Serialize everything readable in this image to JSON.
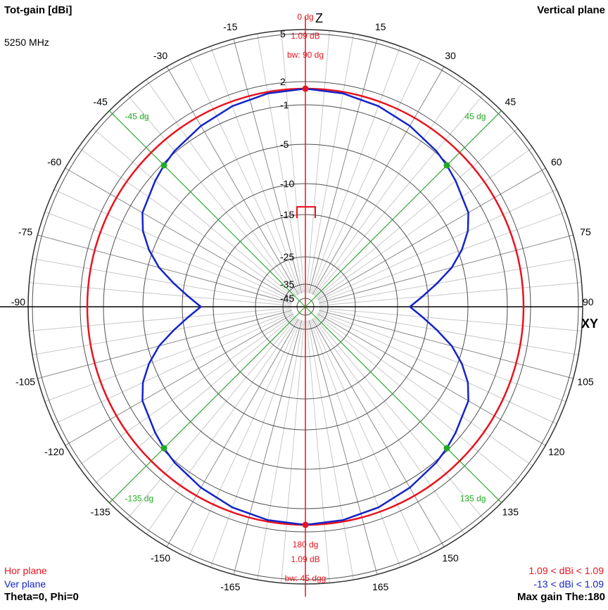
{
  "header": {
    "title": "Tot-gain [dBi]",
    "frequency": "5250 MHz",
    "plane": "Vertical plane",
    "axis_top": "Z",
    "axis_right": "XY",
    "legend_hor": "Hor plane",
    "legend_ver": "Ver plane",
    "angles": "Theta=0, Phi=0",
    "range_hor": "1.09 < dBi < 1.09",
    "range_ver": "-13 < dBi < 1.09",
    "max_gain": "Max gain The:180"
  },
  "colors": {
    "hor": "#e8141e",
    "ver": "#1424c8",
    "marker": "#22aa22",
    "grid_light": "#c8c8c8",
    "grid_dark": "#505050"
  },
  "chart_data": {
    "type": "polar",
    "angle_unit": "degrees",
    "angle_ticks": [
      -165,
      -150,
      -135,
      -120,
      -105,
      -90,
      -75,
      -60,
      -45,
      -30,
      -15,
      15,
      30,
      45,
      60,
      75,
      90,
      105,
      120,
      135,
      150,
      165
    ],
    "radial_ticks": [
      5,
      2,
      -1,
      -5,
      -10,
      -15,
      -25,
      -35,
      -45
    ],
    "radial_unit": "dBi",
    "series": [
      {
        "name": "Hor plane",
        "color": "#e8141e",
        "gain_dbi": 1.09,
        "points": [
          [
            0,
            1.09
          ],
          [
            30,
            1.09
          ],
          [
            60,
            1.09
          ],
          [
            90,
            1.09
          ],
          [
            120,
            1.09
          ],
          [
            150,
            1.09
          ],
          [
            180,
            1.09
          ]
        ]
      },
      {
        "name": "Ver plane",
        "color": "#1424c8",
        "points": [
          [
            0,
            1.09
          ],
          [
            10,
            0.9
          ],
          [
            20,
            0.5
          ],
          [
            30,
            -0.1
          ],
          [
            40,
            -0.8
          ],
          [
            45,
            -1.2
          ],
          [
            50,
            -1.6
          ],
          [
            60,
            -2.4
          ],
          [
            65,
            -3.3
          ],
          [
            70,
            -4.6
          ],
          [
            75,
            -6.4
          ],
          [
            80,
            -8.7
          ],
          [
            85,
            -10.9
          ],
          [
            90,
            -13
          ],
          [
            95,
            -10.9
          ],
          [
            100,
            -8.7
          ],
          [
            105,
            -6.4
          ],
          [
            110,
            -4.6
          ],
          [
            115,
            -3.3
          ],
          [
            120,
            -2.4
          ],
          [
            130,
            -1.6
          ],
          [
            135,
            -1.2
          ],
          [
            140,
            -0.8
          ],
          [
            150,
            -0.1
          ],
          [
            160,
            0.5
          ],
          [
            170,
            0.9
          ],
          [
            180,
            1.09
          ]
        ]
      }
    ],
    "markers": [
      {
        "angle": -45,
        "label": "-45 dg"
      },
      {
        "angle": 45,
        "label": "45 dg"
      },
      {
        "angle": -135,
        "label": "-135 dg"
      },
      {
        "angle": 135,
        "label": "135 dg"
      }
    ],
    "main_lobe_top": {
      "label_angle": "0 dg",
      "label_gain": "1.09 dB",
      "label_bw": "bw: 90 dg"
    },
    "main_lobe_bottom": {
      "label_angle": "180 dg",
      "label_gain": "1.09 dB",
      "label_bw": "bw: 45 dgg"
    }
  }
}
